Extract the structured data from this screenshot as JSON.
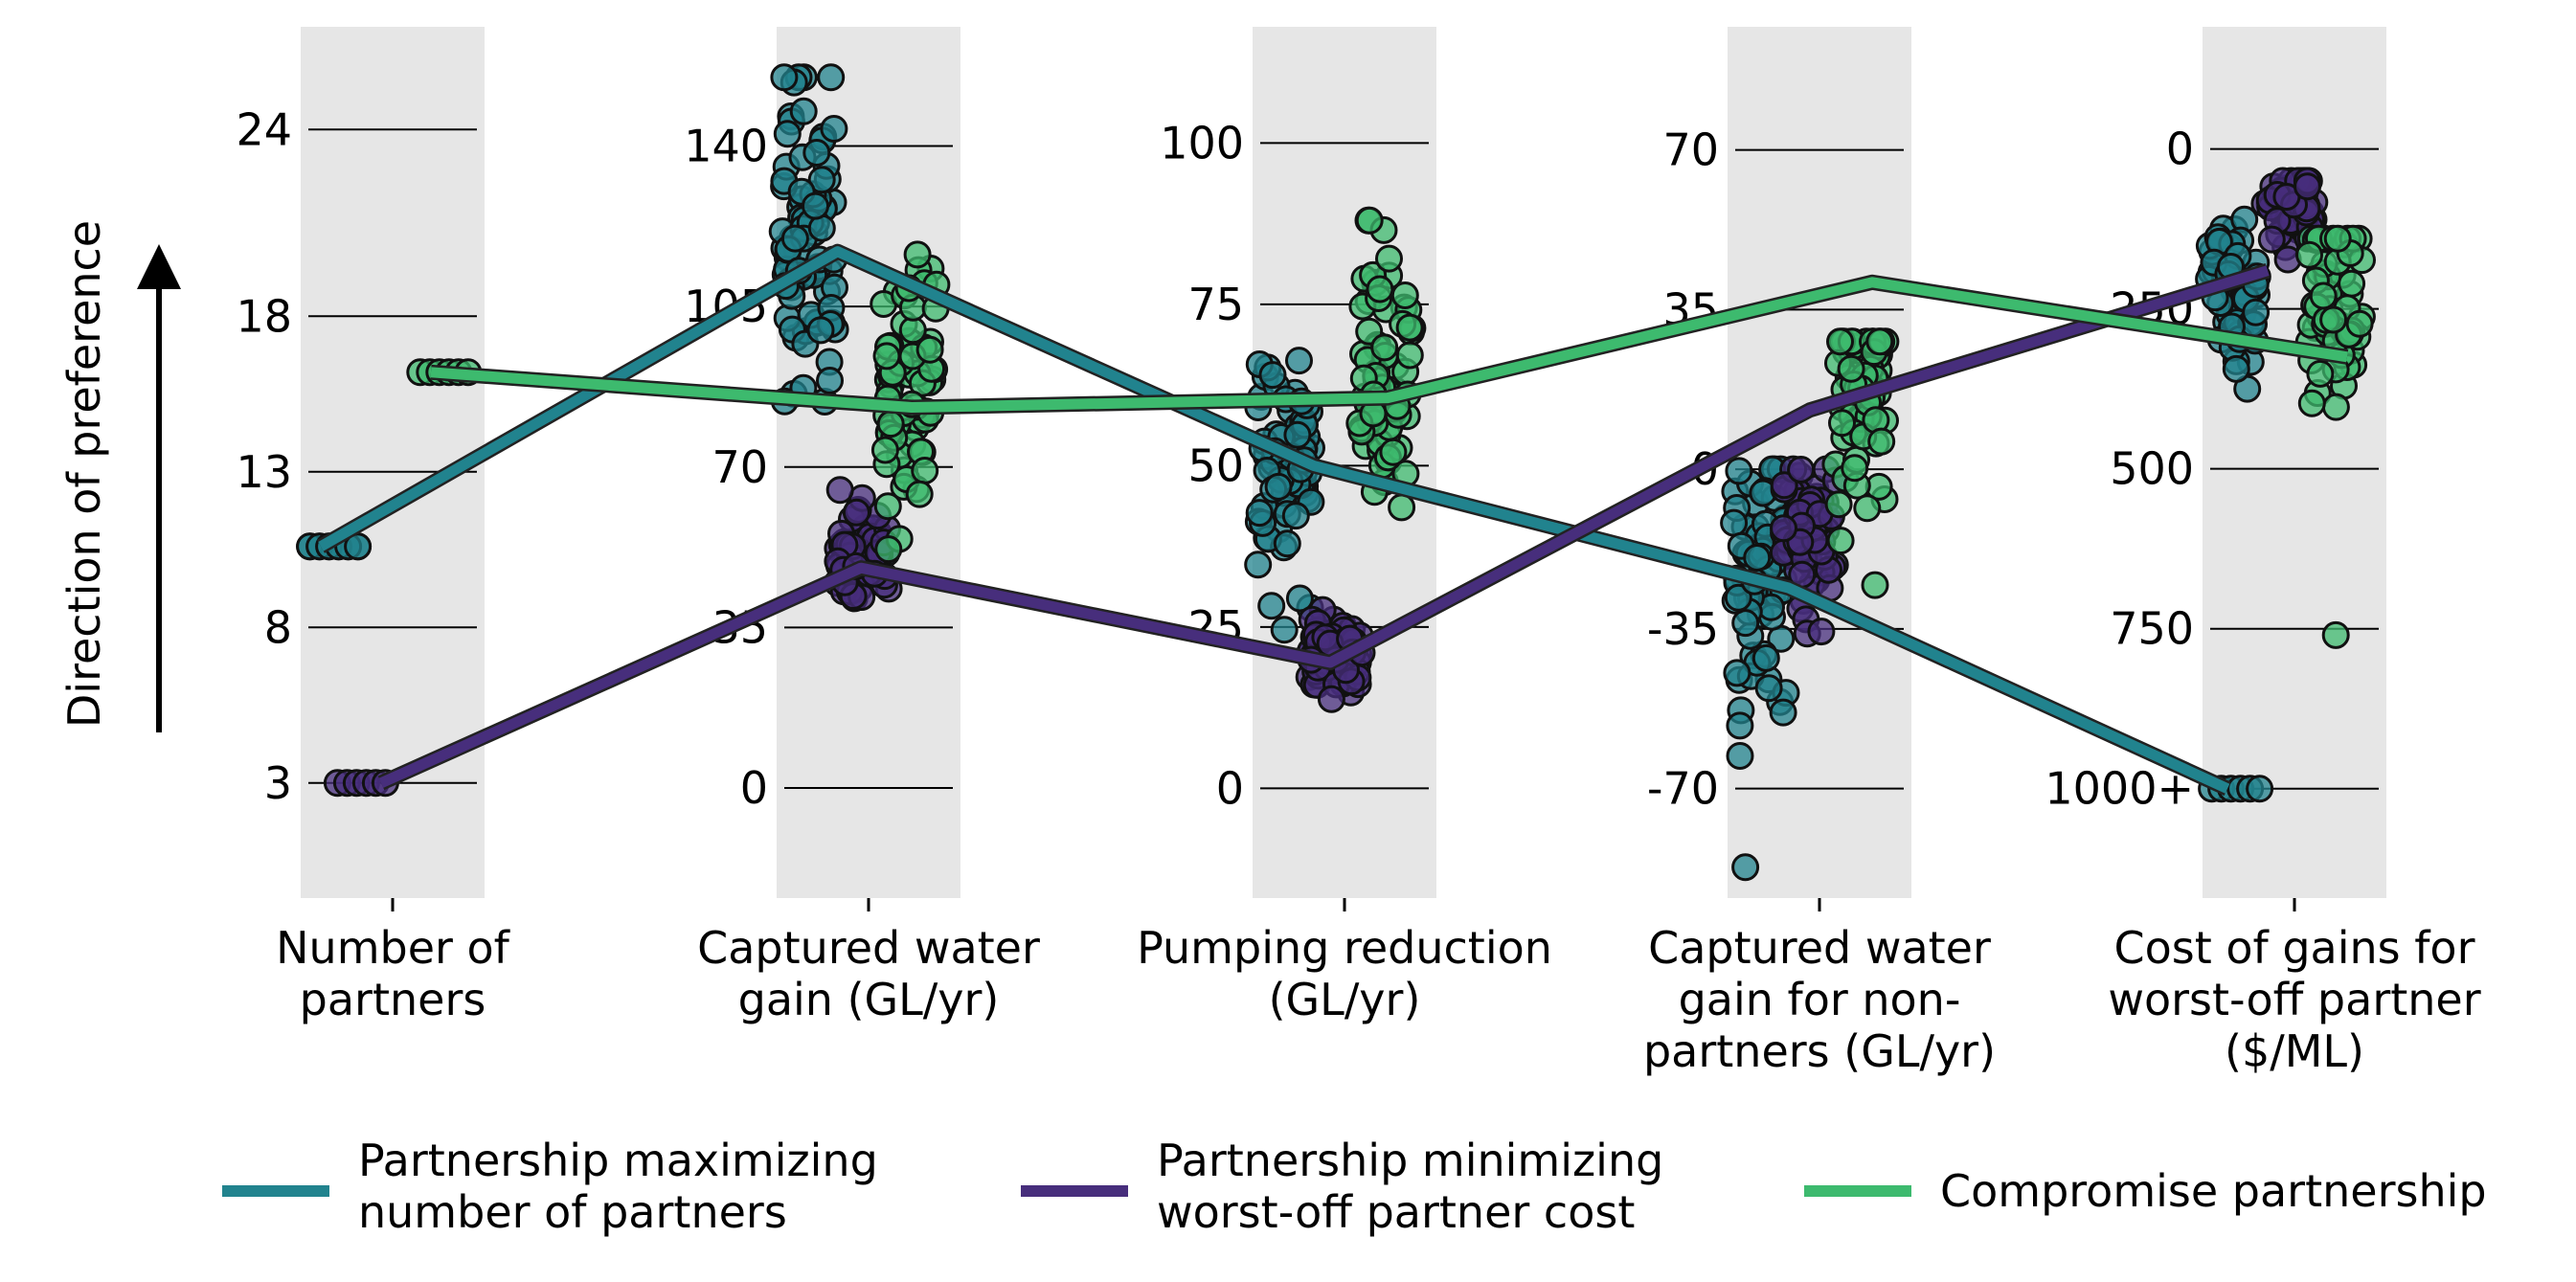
{
  "chart_data": {
    "type": "parallel-coordinates",
    "y_direction_label": "Direction of preference",
    "axes": [
      {
        "id": "partners",
        "label_lines": [
          "Number of",
          "partners"
        ],
        "ticks": [
          3,
          8,
          13,
          18,
          24
        ],
        "tick_labels": [
          "3",
          "8",
          "13",
          "18",
          "24"
        ],
        "range": [
          -0.7,
          27.3
        ]
      },
      {
        "id": "captured",
        "label_lines": [
          "Captured water",
          "gain (GL/yr)"
        ],
        "ticks": [
          0,
          35,
          70,
          105,
          140
        ],
        "tick_labels": [
          "0",
          "35",
          "70",
          "105",
          "140"
        ],
        "range": [
          -24,
          166
        ]
      },
      {
        "id": "pumping",
        "label_lines": [
          "Pumping reduction",
          "(GL/yr)"
        ],
        "ticks": [
          0,
          25,
          50,
          75,
          100
        ],
        "tick_labels": [
          "0",
          "25",
          "50",
          "75",
          "100"
        ],
        "range": [
          -17,
          118
        ]
      },
      {
        "id": "nonpartners",
        "label_lines": [
          "Captured water",
          "gain for non-",
          "partners (GL/yr)"
        ],
        "ticks": [
          -70,
          -35,
          0,
          35,
          70
        ],
        "tick_labels": [
          "-70",
          "-35",
          "0",
          "35",
          "70"
        ],
        "range": [
          -94,
          97
        ]
      },
      {
        "id": "cost",
        "label_lines": [
          "Cost of gains for",
          "worst-off partner",
          "($/ML)"
        ],
        "ticks": [
          1000,
          750,
          500,
          250,
          0
        ],
        "tick_labels": [
          "1000+",
          "750",
          "500",
          "250",
          "0"
        ],
        "range": [
          1171,
          -191
        ],
        "inverted": true
      }
    ],
    "highlighted_partnerships": [
      {
        "name": "Partnership maximizing number of partners",
        "legend_lines": [
          "Partnership maximizing",
          "number of partners"
        ],
        "color": "#21838e",
        "values": [
          10.6,
          117,
          50,
          -26,
          1000
        ]
      },
      {
        "name": "Partnership minimizing worst-off partner cost",
        "legend_lines": [
          "Partnership minimizing",
          "worst-off partner cost"
        ],
        "color": "#472e7c",
        "values": [
          3,
          48,
          19.5,
          13,
          190
        ]
      },
      {
        "name": "Compromise partnership",
        "legend_lines": [
          "Compromise partnership"
        ],
        "color": "#3dba6e",
        "values": [
          16.2,
          83,
          60.5,
          41,
          325
        ]
      }
    ],
    "scatter_groups": [
      {
        "axis": "partners",
        "color": "#21838e",
        "offset": -0.65,
        "points": [
          [
            10.6,
            0.95
          ],
          [
            10.6,
            0.95
          ]
        ],
        "tight": true
      },
      {
        "axis": "partners",
        "color": "#472e7c",
        "offset": -0.35,
        "points": [
          [
            3,
            0.95
          ]
        ],
        "tight": true
      },
      {
        "axis": "partners",
        "color": "#3dba6e",
        "offset": 0.55,
        "points": [
          [
            16.2,
            0.95
          ]
        ],
        "tight": true
      },
      {
        "axis": "captured",
        "color": "#21838e",
        "offset": -0.65,
        "center": 118,
        "spread": 18,
        "min": 70,
        "max": 155,
        "n": 80,
        "seed": 11
      },
      {
        "axis": "captured",
        "color": "#472e7c",
        "offset": -0.05,
        "center": 50,
        "spread": 6,
        "min": 30,
        "max": 65,
        "n": 60,
        "seed": 12
      },
      {
        "axis": "captured",
        "color": "#3dba6e",
        "offset": 0.45,
        "center": 85,
        "spread": 15,
        "min": 50,
        "max": 125,
        "n": 70,
        "seed": 13
      },
      {
        "axis": "pumping",
        "color": "#21838e",
        "offset": -0.65,
        "center": 50,
        "spread": 9,
        "min": 20,
        "max": 77,
        "n": 70,
        "seed": 21
      },
      {
        "axis": "pumping",
        "color": "#472e7c",
        "offset": -0.1,
        "center": 20,
        "spread": 3,
        "min": 11,
        "max": 30,
        "n": 70,
        "seed": 22
      },
      {
        "axis": "pumping",
        "color": "#3dba6e",
        "offset": 0.45,
        "center": 63,
        "spread": 12,
        "min": 37,
        "max": 88,
        "n": 70,
        "seed": 23
      },
      {
        "axis": "nonpartners",
        "color": "#21838e",
        "offset": -0.65,
        "center": -22,
        "spread": 16,
        "min": -88,
        "max": 0,
        "n": 70,
        "seed": 31
      },
      {
        "axis": "nonpartners",
        "color": "#472e7c",
        "offset": -0.1,
        "center": -16,
        "spread": 8,
        "min": -36,
        "max": 0,
        "n": 60,
        "seed": 32
      },
      {
        "axis": "nonpartners",
        "color": "#3dba6e",
        "offset": 0.45,
        "center": 15,
        "spread": 14,
        "min": -55,
        "max": 28,
        "n": 70,
        "seed": 33
      },
      {
        "axis": "cost",
        "color": "#21838e",
        "offset": -0.65,
        "center": 230,
        "spread": 70,
        "min": 90,
        "max": 450,
        "n": 60,
        "seed": 41
      },
      {
        "axis": "cost",
        "color": "#472e7c",
        "offset": -0.05,
        "center": 90,
        "spread": 30,
        "min": 50,
        "max": 200,
        "n": 60,
        "seed": 42
      },
      {
        "axis": "cost",
        "color": "#3dba6e",
        "offset": 0.45,
        "center": 260,
        "spread": 80,
        "min": 140,
        "max": 500,
        "n": 60,
        "seed": 43
      },
      {
        "axis": "cost",
        "color": "#21838e",
        "offset": -0.65,
        "points": [
          [
            1000,
            0.9
          ]
        ],
        "tight": true
      },
      {
        "axis": "cost",
        "color": "#3dba6e",
        "offset": 0.45,
        "points": [
          [
            760,
            0
          ]
        ],
        "tight": false
      }
    ],
    "legend_position": "bottom",
    "grid": "horizontal lines at tick positions within each axis band"
  }
}
